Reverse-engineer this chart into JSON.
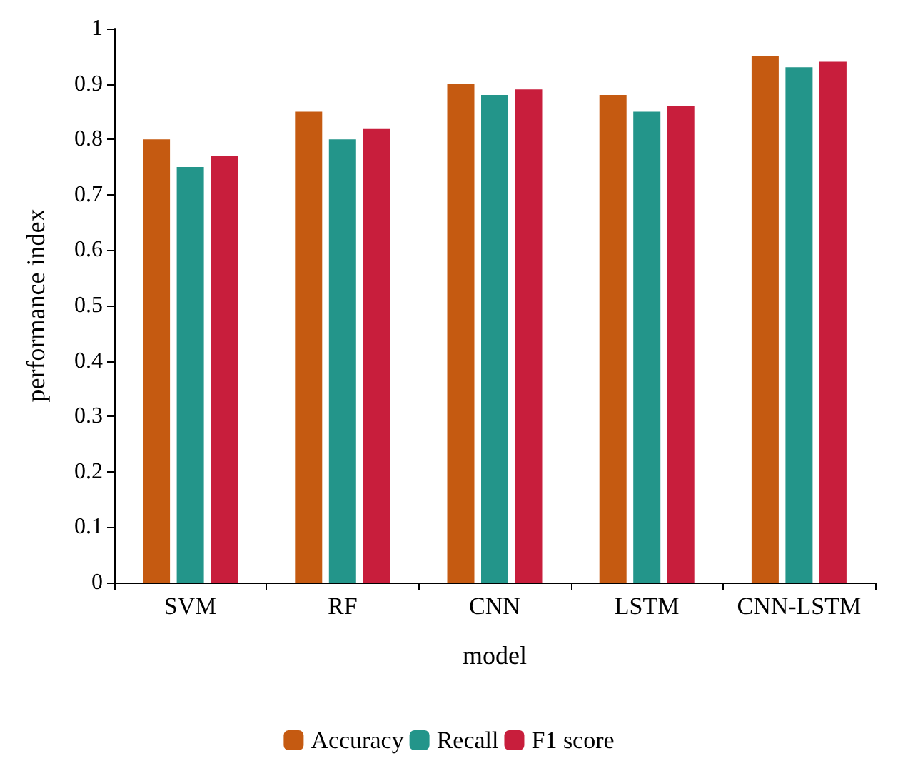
{
  "chart_data": {
    "type": "bar",
    "xlabel": "model",
    "ylabel": "performance index",
    "categories": [
      "SVM",
      "RF",
      "CNN",
      "LSTM",
      "CNN-LSTM"
    ],
    "series": [
      {
        "name": "Accuracy",
        "color": "#c55a11",
        "values": [
          0.8,
          0.85,
          0.9,
          0.88,
          0.95
        ]
      },
      {
        "name": "Recall",
        "color": "#23958a",
        "values": [
          0.75,
          0.8,
          0.88,
          0.85,
          0.93
        ]
      },
      {
        "name": "F1 score",
        "color": "#c81e3c",
        "values": [
          0.77,
          0.82,
          0.89,
          0.86,
          0.94
        ]
      }
    ],
    "ylim": [
      0,
      1
    ],
    "yticks": [
      0,
      0.1,
      0.2,
      0.3,
      0.4,
      0.5,
      0.6,
      0.7,
      0.8,
      0.9,
      1
    ],
    "grid": false,
    "legend": "bottom"
  }
}
